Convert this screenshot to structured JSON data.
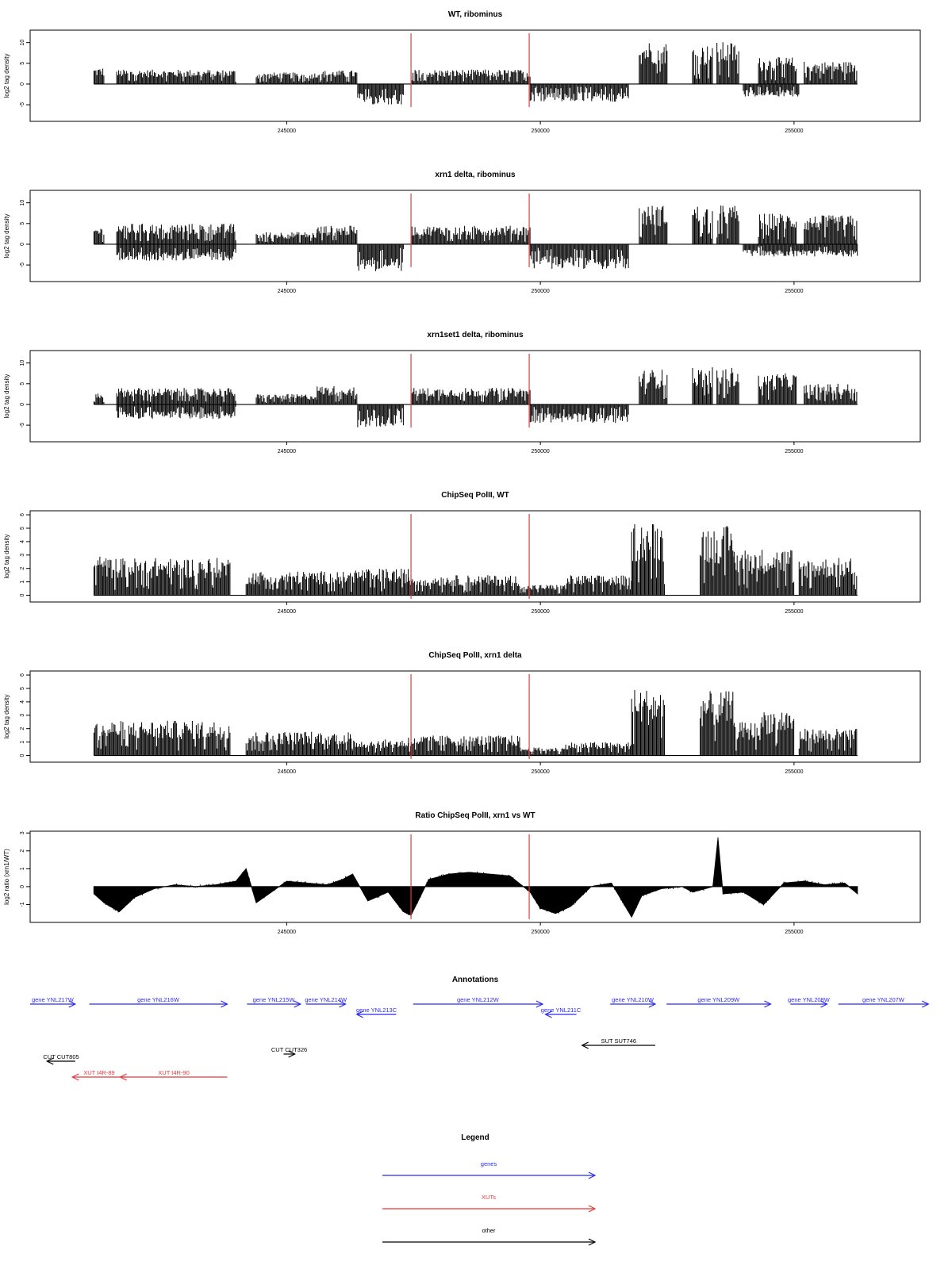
{
  "chart_data": [
    {
      "type": "area",
      "title": "WT, ribominus",
      "ylabel": "log2 tag density",
      "xlabel": "",
      "xlim": [
        240600,
        256800
      ],
      "ylim": [
        -9,
        13
      ],
      "yticks": [
        -5,
        0,
        5,
        10
      ],
      "xticks": [
        245000,
        250000,
        255000
      ],
      "grid": false,
      "marker_lines_x": [
        247450,
        249780
      ],
      "marker_color": "#e8383b",
      "series": [
        {
          "values_plus": [
            {
              "range": [
                241200,
                241400
              ],
              "value": 4.0
            },
            {
              "range": [
                241650,
                244000
              ],
              "value": 3.5
            },
            {
              "range": [
                244400,
                245600
              ],
              "value": 2.8
            },
            {
              "range": [
                245600,
                246400
              ],
              "value": 3.3
            },
            {
              "range": [
                247450,
                249800
              ],
              "value": 3.5
            },
            {
              "range": [
                251950,
                252500
              ],
              "value": 10.5
            },
            {
              "range": [
                253000,
                253400
              ],
              "value": 9.5
            },
            {
              "range": [
                253480,
                253920
              ],
              "value": 10.2
            },
            {
              "range": [
                254300,
                255050
              ],
              "value": 6.5
            },
            {
              "range": [
                255200,
                256250
              ],
              "value": 5.5
            }
          ],
          "values_minus": [
            {
              "range": [
                246400,
                247300
              ],
              "value": -5.0
            },
            {
              "range": [
                249800,
                251750
              ],
              "value": -4.3
            },
            {
              "range": [
                254000,
                255100
              ],
              "value": -3.0
            }
          ]
        }
      ]
    },
    {
      "type": "area",
      "title": "xrn1 delta, ribominus",
      "ylabel": "log2 tag density",
      "xlabel": "",
      "xlim": [
        240600,
        256800
      ],
      "ylim": [
        -9,
        13
      ],
      "yticks": [
        -5,
        0,
        5,
        10
      ],
      "xticks": [
        245000,
        250000,
        255000
      ],
      "grid": false,
      "marker_lines_x": [
        247450,
        249780
      ],
      "marker_color": "#e8383b",
      "series": [
        {
          "values_plus": [
            {
              "range": [
                241200,
                241400
              ],
              "value": 4.2
            },
            {
              "range": [
                241650,
                244000
              ],
              "value": 5.0
            },
            {
              "range": [
                244400,
                245600
              ],
              "value": 3.0
            },
            {
              "range": [
                245600,
                246400
              ],
              "value": 4.5
            },
            {
              "range": [
                247450,
                249800
              ],
              "value": 4.5
            },
            {
              "range": [
                251950,
                252500
              ],
              "value": 9.5
            },
            {
              "range": [
                253000,
                253400
              ],
              "value": 9.5
            },
            {
              "range": [
                253480,
                253920
              ],
              "value": 9.5
            },
            {
              "range": [
                254300,
                255050
              ],
              "value": 7.5
            },
            {
              "range": [
                255200,
                256250
              ],
              "value": 7.0
            }
          ],
          "values_minus": [
            {
              "range": [
                241650,
                244000
              ],
              "value": -4.0
            },
            {
              "range": [
                246400,
                247300
              ],
              "value": -6.5
            },
            {
              "range": [
                249800,
                251750
              ],
              "value": -6.0
            },
            {
              "range": [
                254000,
                256250
              ],
              "value": -3.0
            }
          ]
        }
      ]
    },
    {
      "type": "area",
      "title": "xrn1set1 delta, ribominus",
      "ylabel": "log2 tag density",
      "xlabel": "",
      "xlim": [
        240600,
        256800
      ],
      "ylim": [
        -9,
        13
      ],
      "yticks": [
        -5,
        0,
        5,
        10
      ],
      "xticks": [
        245000,
        250000,
        255000
      ],
      "grid": false,
      "marker_lines_x": [
        247450,
        249780
      ],
      "marker_color": "#e8383b",
      "series": [
        {
          "values_plus": [
            {
              "range": [
                241200,
                241400
              ],
              "value": 3.0
            },
            {
              "range": [
                241650,
                244000
              ],
              "value": 4.0
            },
            {
              "range": [
                244400,
                245600
              ],
              "value": 2.5
            },
            {
              "range": [
                245600,
                246400
              ],
              "value": 4.5
            },
            {
              "range": [
                247450,
                249800
              ],
              "value": 4.0
            },
            {
              "range": [
                251950,
                252500
              ],
              "value": 8.5
            },
            {
              "range": [
                253000,
                253400
              ],
              "value": 9.0
            },
            {
              "range": [
                253480,
                253920
              ],
              "value": 9.0
            },
            {
              "range": [
                254300,
                255050
              ],
              "value": 7.5
            },
            {
              "range": [
                255200,
                256250
              ],
              "value": 5.0
            }
          ],
          "values_minus": [
            {
              "range": [
                241650,
                244000
              ],
              "value": -3.5
            },
            {
              "range": [
                246400,
                247300
              ],
              "value": -5.5
            },
            {
              "range": [
                249800,
                251750
              ],
              "value": -4.5
            }
          ]
        }
      ]
    },
    {
      "type": "area",
      "title": "ChipSeq PolII, WT",
      "ylabel": "log2 tag density",
      "xlabel": "",
      "xlim": [
        240600,
        256800
      ],
      "ylim": [
        -0.5,
        6.3
      ],
      "yticks": [
        0,
        1,
        2,
        3,
        4,
        5,
        6
      ],
      "xticks": [
        245000,
        250000,
        255000
      ],
      "grid": false,
      "marker_lines_x": [
        247450,
        249780
      ],
      "marker_color": "#e8383b",
      "series": [
        {
          "values_plus": [
            {
              "range": [
                241200,
                241380
              ],
              "value": 3.0
            },
            {
              "range": [
                241380,
                243900
              ],
              "value": 2.8
            },
            {
              "range": [
                244200,
                246300
              ],
              "value": 1.8
            },
            {
              "range": [
                246300,
                247400
              ],
              "value": 2.0
            },
            {
              "range": [
                247400,
                249600
              ],
              "value": 1.5
            },
            {
              "range": [
                249600,
                250500
              ],
              "value": 0.8
            },
            {
              "range": [
                250500,
                251800
              ],
              "value": 1.5
            },
            {
              "range": [
                251800,
                252450
              ],
              "value": 5.5
            },
            {
              "range": [
                253150,
                253820
              ],
              "value": 5.2
            },
            {
              "range": [
                253820,
                254350
              ],
              "value": 3.5
            },
            {
              "range": [
                254350,
                255000
              ],
              "value": 3.5
            },
            {
              "range": [
                255100,
                256250
              ],
              "value": 2.8
            }
          ]
        }
      ]
    },
    {
      "type": "area",
      "title": "ChipSeq PolII, xrn1 delta",
      "ylabel": "log2 tag density",
      "xlabel": "",
      "xlim": [
        240600,
        256800
      ],
      "ylim": [
        -0.5,
        6.3
      ],
      "yticks": [
        0,
        1,
        2,
        3,
        4,
        5,
        6
      ],
      "xticks": [
        245000,
        250000,
        255000
      ],
      "grid": false,
      "marker_lines_x": [
        247450,
        249780
      ],
      "marker_color": "#e8383b",
      "series": [
        {
          "values_plus": [
            {
              "range": [
                241200,
                241380
              ],
              "value": 2.5
            },
            {
              "range": [
                241380,
                243900
              ],
              "value": 2.6
            },
            {
              "range": [
                244200,
                246300
              ],
              "value": 1.8
            },
            {
              "range": [
                246300,
                247400
              ],
              "value": 1.2
            },
            {
              "range": [
                247400,
                249600
              ],
              "value": 1.5
            },
            {
              "range": [
                249600,
                250500
              ],
              "value": 0.6
            },
            {
              "range": [
                250500,
                251800
              ],
              "value": 1.0
            },
            {
              "range": [
                251800,
                252450
              ],
              "value": 5.0
            },
            {
              "range": [
                253150,
                253820
              ],
              "value": 4.8
            },
            {
              "range": [
                253820,
                254350
              ],
              "value": 2.5
            },
            {
              "range": [
                254350,
                255000
              ],
              "value": 3.5
            },
            {
              "range": [
                255100,
                256250
              ],
              "value": 2.0
            }
          ]
        }
      ]
    },
    {
      "type": "area",
      "title": "Ratio ChipSeq PolII, xrn1 vs WT",
      "ylabel": "log2 ratio (xrn1/WT)",
      "xlabel": "",
      "xlim": [
        240600,
        256800
      ],
      "ylim": [
        -2,
        3.1
      ],
      "yticks": [
        -1,
        0,
        1,
        2,
        3
      ],
      "xticks": [
        245000,
        250000,
        255000
      ],
      "grid": false,
      "marker_lines_x": [
        247450,
        249780
      ],
      "marker_color": "#e8383b",
      "series": [
        {
          "x": [
            241200,
            241400,
            241700,
            242000,
            242400,
            242800,
            243200,
            243600,
            244000,
            244200,
            244400,
            244700,
            245000,
            245400,
            245800,
            246100,
            246300,
            246600,
            247000,
            247300,
            247450,
            247800,
            248200,
            248600,
            249000,
            249400,
            249800,
            250000,
            250300,
            250600,
            251000,
            251400,
            251800,
            252000,
            252400,
            252800,
            253000,
            253400,
            253500,
            253600,
            254000,
            254400,
            254800,
            255200,
            255600,
            256000,
            256250
          ],
          "y": [
            -0.4,
            -0.9,
            -1.4,
            -0.6,
            -0.1,
            0.1,
            0.0,
            0.1,
            0.3,
            1.0,
            -0.9,
            -0.3,
            0.3,
            0.2,
            0.1,
            0.4,
            0.7,
            -0.8,
            -0.3,
            -1.4,
            -1.6,
            0.4,
            0.7,
            0.8,
            0.7,
            0.6,
            -0.3,
            -1.2,
            -1.5,
            -1.1,
            0.0,
            0.2,
            -1.7,
            -0.5,
            -0.1,
            0.0,
            -0.3,
            0.0,
            2.7,
            -0.4,
            -0.3,
            -1.0,
            0.2,
            0.3,
            0.1,
            0.2,
            -0.4
          ]
        }
      ]
    }
  ],
  "annotations": {
    "title": "Annotations",
    "xlim": [
      240600,
      256800
    ],
    "features": [
      {
        "label": "gene YNL217W",
        "start": 240600,
        "end": 241400,
        "strand": "+",
        "kind": "genes"
      },
      {
        "label": "gene YNL216W",
        "start": 241650,
        "end": 244100,
        "strand": "+",
        "kind": "genes"
      },
      {
        "label": "gene YNL215W",
        "start": 244450,
        "end": 245400,
        "strand": "+",
        "kind": "genes"
      },
      {
        "label": "gene YNL214W",
        "start": 245500,
        "end": 246200,
        "strand": "+",
        "kind": "genes"
      },
      {
        "label": "gene YNL213C",
        "start": 246400,
        "end": 247100,
        "strand": "-",
        "kind": "genes"
      },
      {
        "label": "gene YNL212W",
        "start": 247400,
        "end": 249700,
        "strand": "+",
        "kind": "genes"
      },
      {
        "label": "gene YNL211C",
        "start": 249750,
        "end": 250300,
        "strand": "-",
        "kind": "genes"
      },
      {
        "label": "gene YNL210W",
        "start": 250900,
        "end": 251700,
        "strand": "+",
        "kind": "genes"
      },
      {
        "label": "gene YNL209W",
        "start": 251900,
        "end": 253750,
        "strand": "+",
        "kind": "genes"
      },
      {
        "label": "gene YNL208W",
        "start": 254100,
        "end": 254750,
        "strand": "+",
        "kind": "genes"
      },
      {
        "label": "gene YNL207W",
        "start": 254950,
        "end": 256550,
        "strand": "+",
        "kind": "genes"
      },
      {
        "label": "SUT SUT746",
        "start": 250400,
        "end": 251700,
        "strand": "-",
        "kind": "other"
      },
      {
        "label": "CUT CUT326",
        "start": 245100,
        "end": 245300,
        "strand": "+",
        "kind": "other"
      },
      {
        "label": "CUT CUT805",
        "start": 240900,
        "end": 241400,
        "strand": "-",
        "kind": "other"
      },
      {
        "label": "XUT t4R-89",
        "start": 241350,
        "end": 242300,
        "strand": "-",
        "kind": "XUTs"
      },
      {
        "label": "XUT t4R-90",
        "start": 242200,
        "end": 244100,
        "strand": "-",
        "kind": "XUTs"
      }
    ]
  },
  "legend": {
    "title": "Legend",
    "items": [
      {
        "label": "genes",
        "color": "#2b2bf0"
      },
      {
        "label": "XUTs",
        "color": "#e8383b"
      },
      {
        "label": "other",
        "color": "#000000"
      }
    ]
  }
}
